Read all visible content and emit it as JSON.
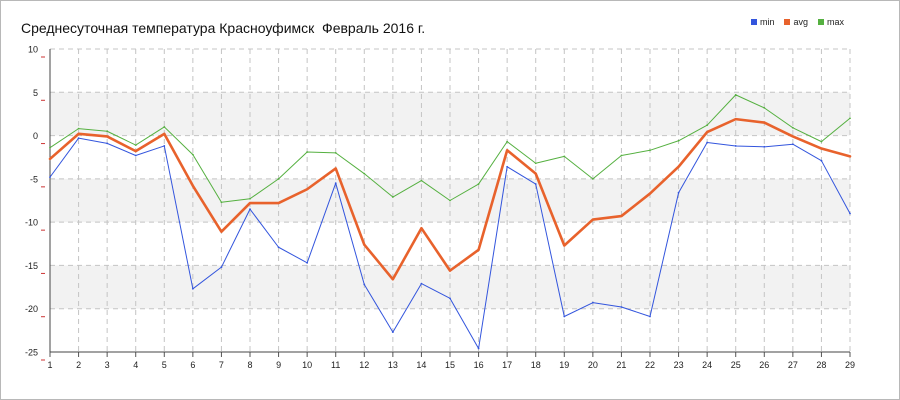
{
  "chart_data": {
    "type": "line",
    "title": "Среднесуточная температура Красноуфимск  Февраль 2016 г.",
    "x": [
      1,
      2,
      3,
      4,
      5,
      6,
      7,
      8,
      9,
      10,
      11,
      12,
      13,
      14,
      15,
      16,
      17,
      18,
      19,
      20,
      21,
      22,
      23,
      24,
      25,
      26,
      27,
      28,
      29
    ],
    "ylim": [
      -25,
      10
    ],
    "yticks": [
      10,
      5,
      0,
      -5,
      -10,
      -15,
      -20,
      -25
    ],
    "grid": true,
    "legend_position": "top-right",
    "series": [
      {
        "name": "min",
        "color": "#3355dd",
        "values": [
          -4.8,
          -0.3,
          -0.9,
          -2.3,
          -1.2,
          -17.7,
          -15.2,
          -8.5,
          -12.9,
          -14.7,
          -5.5,
          -17.2,
          -22.7,
          -17.1,
          -18.8,
          -24.6,
          -3.6,
          -5.6,
          -20.9,
          -19.3,
          -19.8,
          -20.9,
          -6.6,
          -0.8,
          -1.2,
          -1.3,
          -1.0,
          -2.9,
          -9.0
        ]
      },
      {
        "name": "avg",
        "color": "#e8622c",
        "values": [
          -2.7,
          0.2,
          -0.1,
          -1.8,
          0.2,
          -5.8,
          -11.1,
          -7.8,
          -7.8,
          -6.2,
          -3.8,
          -12.6,
          -16.6,
          -10.7,
          -15.6,
          -13.2,
          -1.7,
          -4.4,
          -12.7,
          -9.7,
          -9.3,
          -6.7,
          -3.6,
          0.4,
          1.9,
          1.5,
          -0.1,
          -1.5,
          -2.4
        ]
      },
      {
        "name": "max",
        "color": "#55b040",
        "values": [
          -1.4,
          0.8,
          0.5,
          -1.1,
          1.0,
          -2.2,
          -7.7,
          -7.3,
          -5.0,
          -1.9,
          -2.0,
          -4.4,
          -7.1,
          -5.2,
          -7.5,
          -5.6,
          -0.7,
          -3.2,
          -2.4,
          -5.0,
          -2.3,
          -1.7,
          -0.6,
          1.2,
          4.7,
          3.2,
          0.9,
          -0.7,
          2.0
        ]
      }
    ]
  }
}
